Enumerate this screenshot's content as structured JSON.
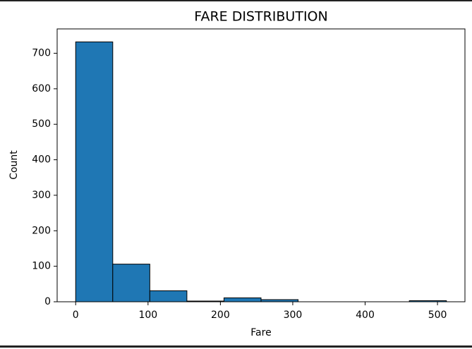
{
  "chart_data": {
    "type": "histogram",
    "title": "FARE DISTRIBUTION",
    "x_label": "Fare",
    "y_label": "Count",
    "bins": [
      0,
      51.23292,
      102.46584,
      153.69876,
      204.93168,
      256.1646,
      307.39752,
      358.63044,
      409.86336,
      461.09628,
      512.3292
    ],
    "values": [
      732,
      106,
      31,
      2,
      11,
      6,
      0,
      0,
      0,
      3
    ],
    "color": "#1f77b4",
    "edgecolor": "#000000",
    "xlim": [
      -25.6,
      537.95
    ],
    "xticks": [
      0,
      100,
      200,
      300,
      400,
      500
    ],
    "ylim": [
      0,
      768.6
    ],
    "yticks": [
      0,
      100,
      200,
      300,
      400,
      500,
      600,
      700
    ]
  }
}
